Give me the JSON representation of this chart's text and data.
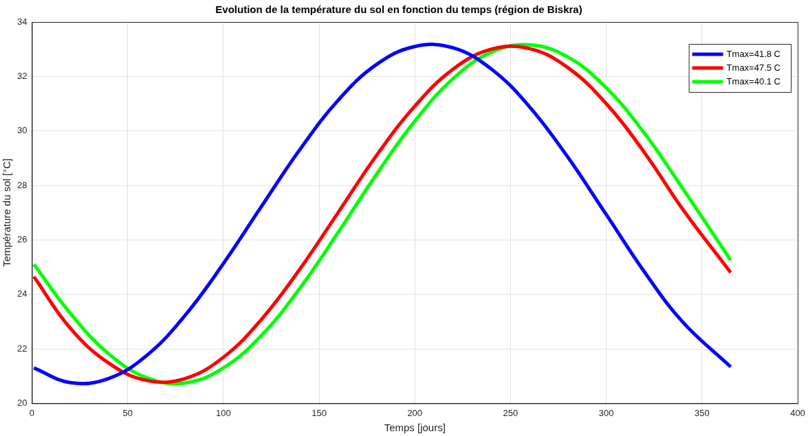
{
  "chart_data": {
    "type": "line",
    "title": "Evolution de la température du sol en fonction du temps (région de Biskra)",
    "xlabel": "Temps [jours]",
    "ylabel": "Température du sol [°C]",
    "x": [
      1,
      20,
      40,
      60,
      80,
      100,
      120,
      140,
      160,
      180,
      200,
      220,
      240,
      260,
      280,
      300,
      320,
      340,
      365
    ],
    "series": [
      {
        "name": "Tmax=41.8 C",
        "color": "#0000ff",
        "values": [
          21.3,
          20.76,
          20.91,
          21.76,
          23.23,
          25.13,
          27.24,
          29.32,
          31.13,
          32.44,
          33.1,
          33.05,
          32.27,
          30.88,
          29.03,
          26.93,
          24.82,
          22.98,
          21.34
        ]
      },
      {
        "name": "Tmax=47.5 C",
        "color": "#ff0000",
        "values": [
          24.65,
          22.76,
          21.48,
          20.84,
          20.91,
          21.69,
          23.09,
          24.93,
          27.01,
          29.1,
          30.91,
          32.27,
          33.0,
          33.02,
          32.32,
          31.0,
          29.2,
          27.12,
          24.8
        ]
      },
      {
        "name": "Tmax=40.1 C",
        "color": "#00ff00",
        "values": [
          25.1,
          23.31,
          21.82,
          20.94,
          20.75,
          21.3,
          22.5,
          24.23,
          26.28,
          28.41,
          30.36,
          31.92,
          32.89,
          33.16,
          32.71,
          31.58,
          29.91,
          27.88,
          25.25
        ]
      }
    ],
    "xlim": [
      0,
      400
    ],
    "xticks": [
      0,
      50,
      100,
      150,
      200,
      250,
      300,
      350,
      400
    ],
    "ylim": [
      20,
      34
    ],
    "yticks": [
      20,
      22,
      24,
      26,
      28,
      30,
      32,
      34
    ],
    "grid": true,
    "legend": "top right",
    "marker": "none",
    "line_style": "solid"
  }
}
